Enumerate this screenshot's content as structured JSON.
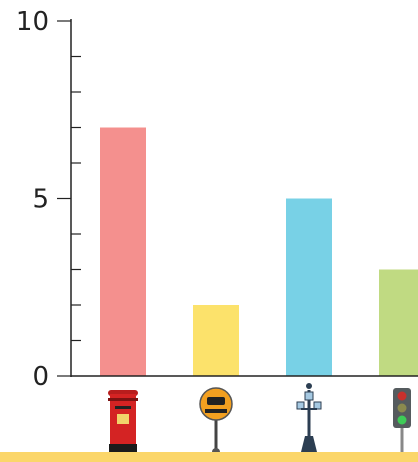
{
  "chart_data": {
    "type": "bar",
    "categories": [
      "post-box",
      "bus-stop",
      "street-lamp",
      "traffic-light"
    ],
    "icons": [
      "post-box-icon",
      "bus-stop-sign-icon",
      "street-lamp-icon",
      "traffic-light-icon"
    ],
    "values": [
      7,
      2,
      5,
      3
    ],
    "colors": [
      "#f4908e",
      "#fce26b",
      "#78d1e6",
      "#c0da82"
    ],
    "ylim": [
      0,
      10
    ],
    "major_ticks": [
      0,
      5,
      10
    ],
    "tick_labels": [
      "0",
      "5",
      "10"
    ],
    "minor_step": 1,
    "grid": false,
    "axis_color": "#222222",
    "footer_color": "#fbd66a"
  }
}
